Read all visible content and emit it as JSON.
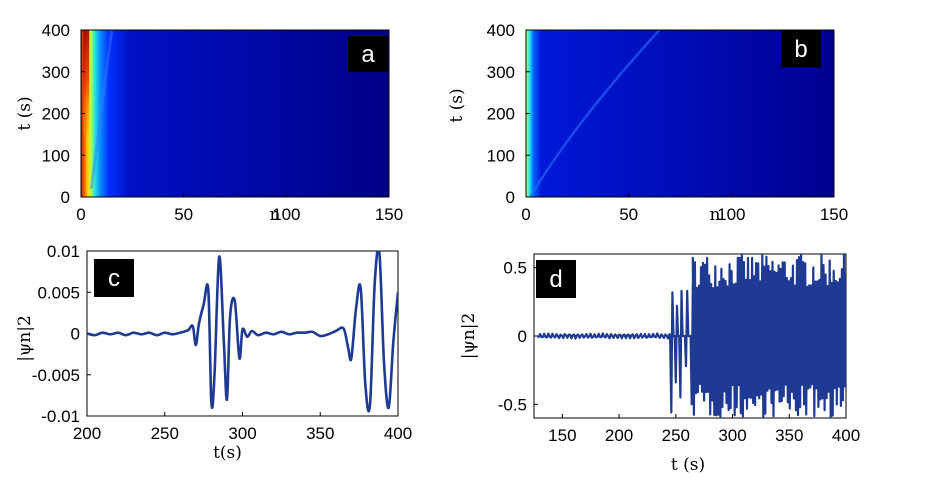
{
  "colors": {
    "jet_background": "#00007f",
    "trace": "#1f3a93",
    "axis": "#000000"
  },
  "chart_data": [
    {
      "id": "a",
      "type": "heatmap",
      "panel_label": "a",
      "xlabel": "n",
      "ylabel": "t (s)",
      "xlim": [
        0,
        150
      ],
      "ylim": [
        0,
        400
      ],
      "xticks": [
        "0",
        "50",
        "100",
        "150"
      ],
      "yticks": [
        "0",
        "100",
        "200",
        "300",
        "400"
      ],
      "colormap": "jet",
      "description_intensity": {
        "hot_columns_n": [
          0,
          10
        ],
        "peak_near_n": 2,
        "faint_front_from": [
          5,
          20
        ],
        "faint_front_to": [
          15,
          400
        ]
      }
    },
    {
      "id": "b",
      "type": "heatmap",
      "panel_label": "b",
      "xlabel": "n",
      "ylabel": "t (s)",
      "xlim": [
        0,
        150
      ],
      "ylim": [
        0,
        400
      ],
      "xticks": [
        "0",
        "50",
        "100",
        "150"
      ],
      "yticks": [
        "0",
        "100",
        "200",
        "300",
        "400"
      ],
      "colormap": "jet",
      "description_intensity": {
        "hot_columns_n": [
          0,
          6
        ],
        "peak_near_n": 0,
        "faint_front_from": [
          2,
          0
        ],
        "faint_front_to": [
          65,
          400
        ]
      }
    },
    {
      "id": "c",
      "type": "line",
      "panel_label": "c",
      "xlabel": "t(s)",
      "ylabel": "|ψn|2",
      "xlim": [
        200,
        400
      ],
      "ylim": [
        -0.01,
        0.01
      ],
      "xticks": [
        "200",
        "250",
        "300",
        "350",
        "400"
      ],
      "yticks": [
        "0.01",
        "0.005",
        "0",
        "-0.005",
        "-0.01"
      ],
      "series": [
        {
          "x": [
            200,
            205,
            210,
            215,
            220,
            225,
            230,
            235,
            240,
            245,
            250,
            255,
            260,
            265,
            268,
            270,
            272,
            275,
            278,
            280,
            282,
            285,
            288,
            290,
            292,
            295,
            298,
            300,
            303,
            306,
            310,
            315,
            320,
            325,
            330,
            335,
            340,
            345,
            350,
            355,
            360,
            365,
            368,
            370,
            373,
            376,
            379,
            382,
            385,
            388,
            391,
            394,
            397,
            400
          ],
          "y": [
            0,
            -0.0002,
            0.0001,
            -0.0001,
            0.0001,
            -0.0002,
            0.0001,
            -0.0001,
            0.0001,
            -0.0002,
            0.0001,
            -0.0001,
            0.0001,
            0.0004,
            0.0009,
            -0.0014,
            0.0012,
            0.0035,
            0.0053,
            -0.0084,
            -0.005,
            0.0093,
            -0.001,
            -0.008,
            0.002,
            0.004,
            -0.003,
            0.0005,
            -0.0004,
            0.0003,
            -0.0002,
            0.0001,
            -0.0001,
            0.0002,
            -0.0001,
            0.0001,
            0.0001,
            0.0002,
            -0.0003,
            -0.0001,
            0.0003,
            0.0006,
            -0.0018,
            -0.003,
            0.003,
            0.0055,
            -0.0062,
            -0.0086,
            0.006,
            0.0098,
            -0.0035,
            -0.009,
            -0.001,
            0.005
          ]
        }
      ]
    },
    {
      "id": "d",
      "type": "line",
      "panel_label": "d",
      "xlabel": "t (s)",
      "ylabel": "|ψn|2",
      "xlim": [
        125,
        400
      ],
      "ylim": [
        -0.6,
        0.6
      ],
      "xticks": [
        "150",
        "200",
        "250",
        "300",
        "350",
        "400"
      ],
      "yticks": [
        "0.5",
        "0",
        "-0.5"
      ],
      "series": [
        {
          "x_start": 128,
          "x_end": 400,
          "quiet_until": 245,
          "quiet_amplitude": 0.02,
          "onset_spikes": [
            {
              "x": 246,
              "lo": -0.56,
              "hi": 0.32
            },
            {
              "x": 250,
              "lo": -0.34,
              "hi": 0.22
            },
            {
              "x": 254,
              "lo": -0.45,
              "hi": 0.33
            },
            {
              "x": 259,
              "lo": -0.22,
              "hi": 0.33
            },
            {
              "x": 264,
              "lo": -0.5,
              "hi": 0.38
            }
          ],
          "burst_from": 265,
          "burst_amplitude_range": [
            0.35,
            0.6
          ]
        }
      ]
    }
  ]
}
